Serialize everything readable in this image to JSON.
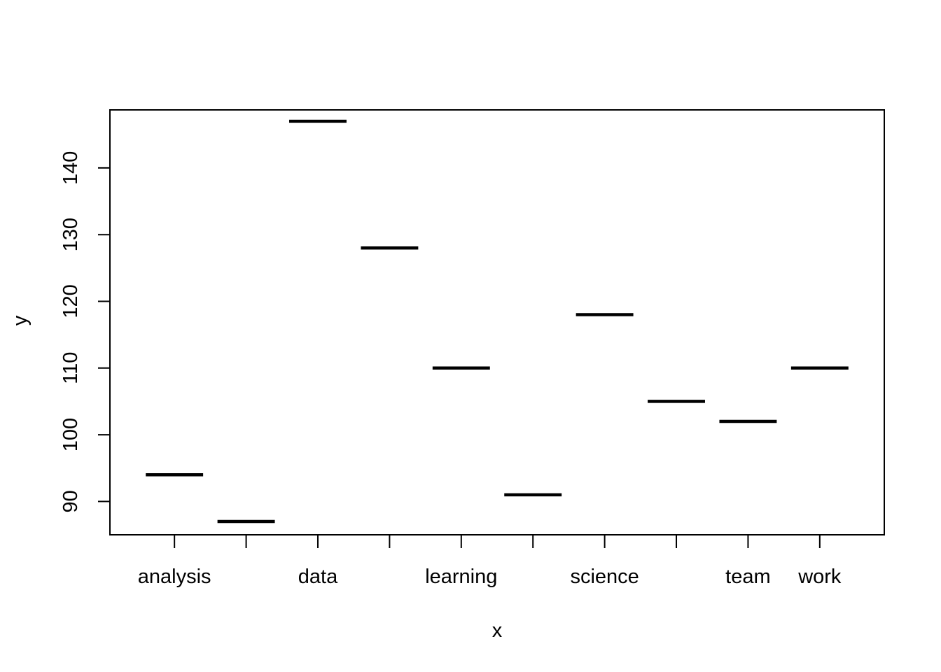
{
  "chart_data": {
    "type": "bar",
    "categories": [
      "analysis",
      "",
      "data",
      "",
      "learning",
      "",
      "science",
      "",
      "team",
      "work"
    ],
    "values": [
      94,
      87,
      147,
      128,
      110,
      91,
      118,
      105,
      102,
      110
    ],
    "title": "",
    "xlabel": "x",
    "ylabel": "y",
    "ylim": [
      85,
      148.7
    ],
    "yticks": [
      90,
      100,
      110,
      120,
      130,
      140
    ],
    "grid": false,
    "legend": "none",
    "colors": {
      "mark": "#000000",
      "axis": "#000000",
      "background": "#ffffff"
    }
  }
}
